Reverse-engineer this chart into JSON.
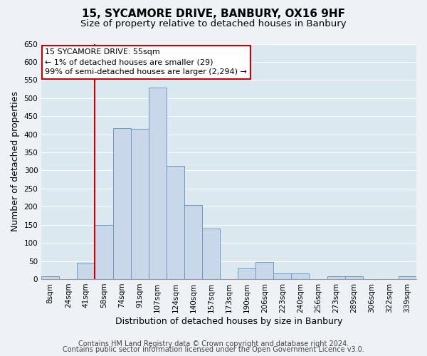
{
  "title": "15, SYCAMORE DRIVE, BANBURY, OX16 9HF",
  "subtitle": "Size of property relative to detached houses in Banbury",
  "xlabel": "Distribution of detached houses by size in Banbury",
  "ylabel": "Number of detached properties",
  "categories": [
    "8sqm",
    "24sqm",
    "41sqm",
    "58sqm",
    "74sqm",
    "91sqm",
    "107sqm",
    "124sqm",
    "140sqm",
    "157sqm",
    "173sqm",
    "190sqm",
    "206sqm",
    "223sqm",
    "240sqm",
    "256sqm",
    "273sqm",
    "289sqm",
    "306sqm",
    "322sqm",
    "339sqm"
  ],
  "values": [
    8,
    0,
    45,
    150,
    417,
    415,
    530,
    313,
    205,
    140,
    0,
    30,
    48,
    15,
    15,
    0,
    8,
    8,
    0,
    0,
    8
  ],
  "bar_color": "#c8d8ea",
  "bar_edge_color": "#6b9bbf",
  "vline_color": "#cc0000",
  "vline_index": 3,
  "annotation_text": "15 SYCAMORE DRIVE: 55sqm\n← 1% of detached houses are smaller (29)\n99% of semi-detached houses are larger (2,294) →",
  "annotation_box_facecolor": "#ffffff",
  "annotation_box_edgecolor": "#cc0000",
  "ylim": [
    0,
    650
  ],
  "yticks": [
    0,
    50,
    100,
    150,
    200,
    250,
    300,
    350,
    400,
    450,
    500,
    550,
    600,
    650
  ],
  "footer1": "Contains HM Land Registry data © Crown copyright and database right 2024.",
  "footer2": "Contains public sector information licensed under the Open Government Licence v3.0.",
  "bg_color": "#eef2f7",
  "plot_bg_color": "#dce8f0",
  "grid_color": "#ffffff",
  "title_fontsize": 11,
  "subtitle_fontsize": 9.5,
  "axis_label_fontsize": 9,
  "tick_fontsize": 7.5,
  "annotation_fontsize": 8,
  "footer_fontsize": 7
}
